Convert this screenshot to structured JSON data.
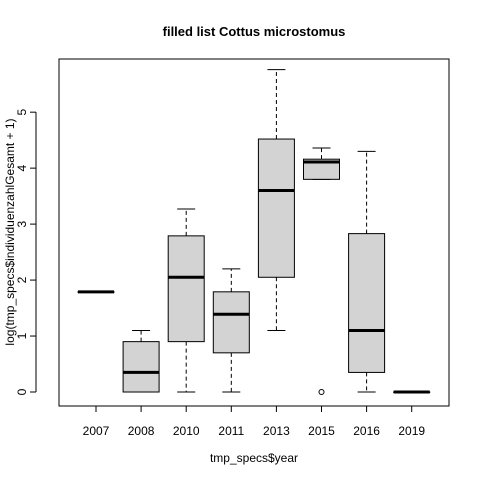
{
  "chart_data": {
    "type": "boxplot",
    "title": "filled list Cottus microstomus",
    "xlabel": "tmp_specs$year",
    "ylabel": "log(tmp_specs$individuenzahlGesamt + 1)",
    "ylim": [
      -0.25,
      5.95
    ],
    "yticks": [
      0,
      1,
      2,
      3,
      4,
      5
    ],
    "grid": false,
    "box_fill": "#d3d3d3",
    "categories": [
      "2007",
      "2008",
      "2010",
      "2011",
      "2013",
      "2015",
      "2016",
      "2019"
    ],
    "boxes": [
      {
        "label": "2007",
        "whisker_low": 1.79,
        "q1": 1.79,
        "median": 1.79,
        "q3": 1.79,
        "whisker_high": 1.79,
        "outliers": []
      },
      {
        "label": "2008",
        "whisker_low": 0.0,
        "q1": 0.0,
        "median": 0.35,
        "q3": 0.9,
        "whisker_high": 1.1,
        "outliers": []
      },
      {
        "label": "2010",
        "whisker_low": 0.0,
        "q1": 0.9,
        "median": 2.05,
        "q3": 2.79,
        "whisker_high": 3.27,
        "outliers": []
      },
      {
        "label": "2011",
        "whisker_low": 0.0,
        "q1": 0.7,
        "median": 1.39,
        "q3": 1.79,
        "whisker_high": 2.2,
        "outliers": []
      },
      {
        "label": "2013",
        "whisker_low": 1.1,
        "q1": 2.05,
        "median": 3.6,
        "q3": 4.52,
        "whisker_high": 5.76,
        "outliers": []
      },
      {
        "label": "2015",
        "whisker_low": 3.8,
        "q1": 3.8,
        "median": 4.11,
        "q3": 4.16,
        "whisker_high": 4.36,
        "outliers": [
          0.0
        ]
      },
      {
        "label": "2016",
        "whisker_low": 0.0,
        "q1": 0.35,
        "median": 1.1,
        "q3": 2.83,
        "whisker_high": 4.3,
        "outliers": []
      },
      {
        "label": "2019",
        "whisker_low": 0.0,
        "q1": 0.0,
        "median": 0.0,
        "q3": 0.0,
        "whisker_high": 0.0,
        "outliers": []
      }
    ]
  }
}
